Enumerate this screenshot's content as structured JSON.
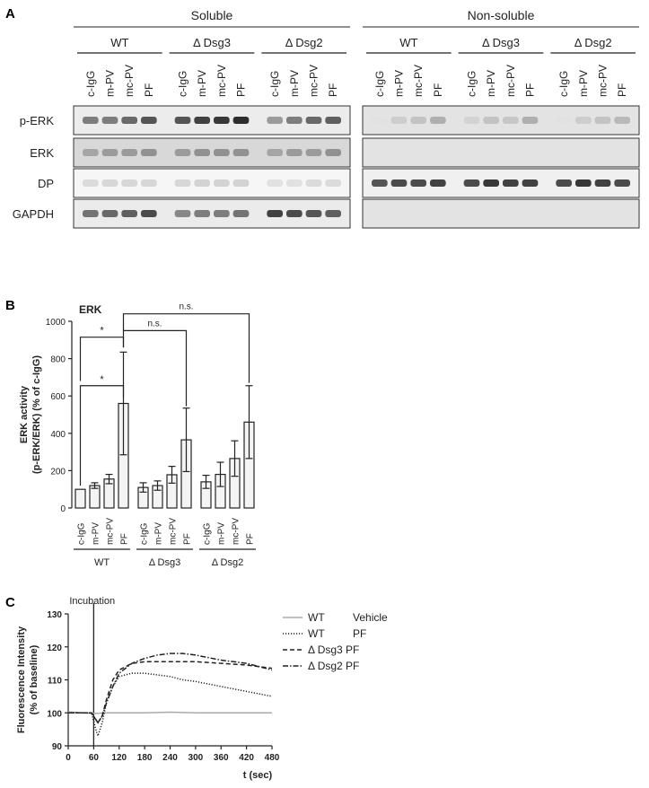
{
  "panel_labels": [
    "A",
    "B",
    "C"
  ],
  "panel_a": {
    "groups": [
      "Soluble",
      "Non-soluble"
    ],
    "genotypes": [
      "WT",
      "Δ Dsg3",
      "Δ Dsg2"
    ],
    "treatments": [
      "c-IgG",
      "m-PV",
      "mc-PV",
      "PF"
    ],
    "rows": [
      "p-ERK",
      "ERK",
      "DP",
      "GAPDH"
    ]
  },
  "chart_data": [
    {
      "type": "bar",
      "panel": "B",
      "title": "ERK",
      "ylabel": "ERK activity (p-ERK/ERK) (% of c-IgG)",
      "ylabel_lines": [
        "ERK activity",
        "(p-ERK/ERK) (% of c-IgG)"
      ],
      "ylim": [
        0,
        1000
      ],
      "yticks": [
        0,
        200,
        400,
        600,
        800,
        1000
      ],
      "categories": [
        "c-IgG",
        "m-PV",
        "mc-PV",
        "PF"
      ],
      "groups": [
        {
          "name": "WT",
          "values": [
            100,
            120,
            155,
            560
          ],
          "errors": [
            0,
            15,
            25,
            275
          ]
        },
        {
          "name": "Δ Dsg3",
          "values": [
            110,
            120,
            178,
            365
          ],
          "errors": [
            25,
            25,
            45,
            170
          ]
        },
        {
          "name": "Δ Dsg2",
          "values": [
            140,
            180,
            265,
            460
          ],
          "errors": [
            35,
            65,
            95,
            195
          ]
        }
      ],
      "annotations": [
        {
          "text": "*",
          "between": "WT c-IgG vs WT PF (upper)"
        },
        {
          "text": "*",
          "between": "WT c-IgG vs WT PF (lower)"
        },
        {
          "text": "n.s.",
          "between": "WT PF vs Δ Dsg3 PF"
        },
        {
          "text": "n.s.",
          "between": "WT PF vs Δ Dsg2 PF"
        }
      ]
    },
    {
      "type": "line",
      "panel": "C",
      "ylabel": "Fluorescence Intensity (% of baseline)",
      "ylabel_lines": [
        "Fluorescence Intensity",
        "(% of baseline)"
      ],
      "xlabel": "t (sec)",
      "xlim": [
        0,
        480
      ],
      "ylim": [
        90,
        130
      ],
      "xticks": [
        0,
        60,
        120,
        180,
        240,
        300,
        360,
        420,
        480
      ],
      "yticks": [
        90,
        100,
        110,
        120,
        130
      ],
      "annotation": {
        "text": "Incubation",
        "x": 60
      },
      "series": [
        {
          "name": "WT Vehicle",
          "legend": [
            "WT",
            "Vehicle"
          ],
          "color": "#aaaaaa",
          "dash": "solid",
          "x": [
            0,
            30,
            60,
            90,
            120,
            180,
            240,
            300,
            360,
            420,
            480
          ],
          "y": [
            100.3,
            100,
            99.8,
            100,
            100,
            100,
            100.2,
            100,
            100,
            100,
            100
          ]
        },
        {
          "name": "WT PF",
          "legend": [
            "WT",
            "PF"
          ],
          "color": "#222222",
          "dash": "dotted",
          "x": [
            0,
            30,
            55,
            65,
            70,
            80,
            90,
            105,
            120,
            150,
            180,
            210,
            240,
            270,
            300,
            360,
            420,
            480
          ],
          "y": [
            100,
            100,
            100,
            95,
            93,
            97,
            103,
            108,
            111,
            112,
            112,
            111.5,
            111,
            110,
            109.5,
            108,
            106.5,
            105
          ]
        },
        {
          "name": "Δ Dsg3 PF",
          "legend": [
            "Δ Dsg3 PF",
            ""
          ],
          "color": "#222222",
          "dash": "dashed",
          "x": [
            0,
            30,
            55,
            65,
            70,
            80,
            90,
            105,
            120,
            150,
            180,
            210,
            240,
            270,
            300,
            360,
            420,
            480
          ],
          "y": [
            100,
            100,
            100,
            98,
            97,
            99,
            104,
            110,
            113,
            115,
            115.5,
            115.5,
            115.5,
            115.5,
            115.5,
            115,
            114.5,
            113.5
          ]
        },
        {
          "name": "Δ Dsg2 PF",
          "legend": [
            "Δ Dsg2 PF",
            ""
          ],
          "color": "#222222",
          "dash": "dashdot",
          "x": [
            0,
            30,
            55,
            65,
            70,
            80,
            90,
            105,
            120,
            150,
            180,
            210,
            240,
            270,
            300,
            360,
            420,
            480
          ],
          "y": [
            100,
            100,
            100,
            98,
            97,
            99,
            103,
            108,
            112,
            115,
            116.5,
            117.5,
            118,
            118,
            117.5,
            116,
            115,
            113
          ]
        }
      ]
    }
  ]
}
